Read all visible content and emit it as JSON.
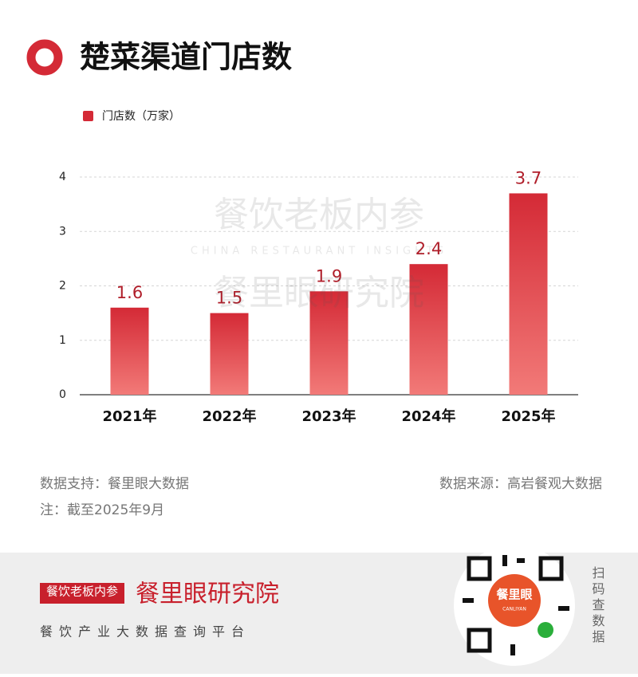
{
  "header": {
    "title": "楚菜渠道门店数"
  },
  "chart_data": {
    "type": "bar",
    "series_name": "门店数（万家）",
    "categories": [
      "2021年",
      "2022年",
      "2023年",
      "2024年",
      "2025年"
    ],
    "values": [
      1.6,
      1.5,
      1.9,
      2.4,
      3.7
    ],
    "color": "#d42a36",
    "label_color": "#b01e2a",
    "ylim": [
      0,
      4
    ],
    "yticks": [
      0,
      1,
      2,
      3,
      4
    ],
    "grid": true
  },
  "watermark": {
    "line1": "餐饮老板内参",
    "line2": "CHINA RESTAURANT INSIGHTS",
    "line3": "餐里眼研究院"
  },
  "notes": {
    "support": "数据支持：餐里眼大数据",
    "source": "数据来源：高岩餐观大数据",
    "note": "注：截至2025年9月"
  },
  "brand": {
    "logo": "餐饮老板内参",
    "institute": "餐里眼研究院",
    "tagline": "餐饮产业大数据查询平台",
    "qr_center": "餐里眼",
    "qr_sub": "CANLIYAN",
    "scan": "扫码查数据"
  }
}
